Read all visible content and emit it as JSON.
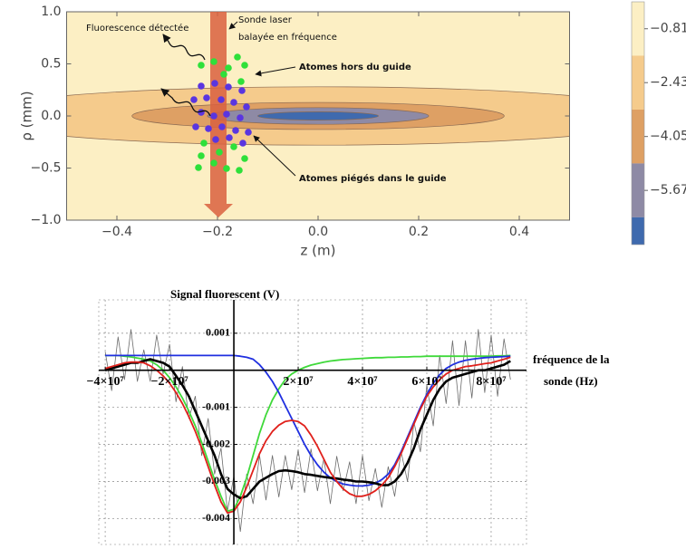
{
  "chart_data": [
    {
      "type": "contour",
      "xlim": [
        -0.5,
        0.5
      ],
      "ylim": [
        -1,
        1
      ],
      "xticks": [
        {
          "value": -0.4,
          "label": "−0.4"
        },
        {
          "value": -0.2,
          "label": "−0.2"
        },
        {
          "value": 0,
          "label": "0.0"
        },
        0.2,
        0.4
      ],
      "yticks": [
        {
          "value": 1,
          "label": "1.0"
        },
        0.5,
        {
          "value": 0,
          "label": "0.0"
        },
        {
          "value": -0.5,
          "label": "−0.5"
        },
        {
          "value": -1,
          "label": "−1.0"
        }
      ],
      "x_label": "z (m)",
      "y_label": "ρ (mm)",
      "levels": [
        -1.62,
        -3.24,
        -4.86,
        -6.48
      ],
      "contours": [
        {
          "level": -1.62,
          "z_half_width": 0.7,
          "rho_half_width": 0.28
        },
        {
          "level": -3.24,
          "z_half_width": 0.37,
          "rho_half_width": 0.13
        },
        {
          "level": -4.86,
          "z_half_width": 0.22,
          "rho_half_width": 0.08
        },
        {
          "level": -6.48,
          "z_half_width": 0.12,
          "rho_half_width": 0.04
        }
      ],
      "colors": [
        "#fcefc4",
        "#f5cb8c",
        "#dea064",
        "#8e8aa5",
        "#3f6aae"
      ],
      "colorbar": {
        "lim": [
          -7.3,
          0
        ],
        "ticks": [
          {
            "value": -0.81,
            "label": "−0.81"
          },
          {
            "value": -2.43,
            "label": "−2.43"
          },
          {
            "value": -4.05,
            "label": "−4.05"
          },
          {
            "value": -5.67,
            "label": "−5.67"
          }
        ]
      },
      "annotations": [
        "Fluorescence détectée",
        "Sonde laser",
        "balayée en fréquence",
        "Atomes hors du guide",
        "Atomes piégés dans le guide"
      ]
    },
    {
      "type": "line",
      "title": "Signal fluorescent (V)",
      "x_label": [
        "fréquence de la",
        "sonde (Hz)"
      ],
      "xlim": [
        -42000000,
        91000000
      ],
      "ylim": [
        -0.0047,
        0.0019
      ],
      "xticks": [
        {
          "value": -40000000,
          "label": "−4×10⁷"
        },
        {
          "value": -20000000,
          "label": "−2×10⁷"
        },
        {
          "value": 20000000,
          "label": "2×10⁷"
        },
        {
          "value": 40000000,
          "label": "4×10⁷"
        },
        {
          "value": 60000000,
          "label": "6×10⁷"
        },
        {
          "value": 80000000,
          "label": "8×10⁷"
        }
      ],
      "yticks": [
        0.001,
        -0.001,
        -0.002,
        -0.003,
        -0.004
      ],
      "grid": true,
      "x": [
        -40000000,
        -38000000,
        -36000000,
        -34000000,
        -32000000,
        -30000000,
        -28000000,
        -26000000,
        -24000000,
        -22000000,
        -20000000,
        -18000000,
        -16000000,
        -14000000,
        -12000000,
        -10000000,
        -8000000,
        -6000000,
        -4000000,
        -2000000,
        0,
        2000000,
        4000000,
        6000000,
        8000000,
        10000000,
        12000000,
        14000000,
        16000000,
        18000000,
        20000000,
        22000000,
        24000000,
        26000000,
        28000000,
        30000000,
        32000000,
        34000000,
        36000000,
        38000000,
        40000000,
        42000000,
        44000000,
        46000000,
        48000000,
        50000000,
        52000000,
        54000000,
        56000000,
        58000000,
        60000000,
        62000000,
        64000000,
        66000000,
        68000000,
        70000000,
        72000000,
        74000000,
        76000000,
        78000000,
        80000000,
        82000000,
        84000000,
        86000000
      ],
      "series": [
        {
          "color": "#6b6b6b",
          "values": [
            0.0005,
            -0.00055,
            0.0009,
            -0.00025,
            0.0011,
            -0.0003,
            0.00055,
            -0.0003,
            0.00095,
            -0.0001,
            0.0007,
            -0.00085,
            0.0001,
            -0.0013,
            -0.0007,
            -0.0023,
            -0.0013,
            -0.0028,
            -0.0021,
            -0.0038,
            -0.00285,
            -0.00435,
            -0.0028,
            -0.0036,
            -0.0023,
            -0.0035,
            -0.0023,
            -0.00342,
            -0.0023,
            -0.00322,
            -0.00215,
            -0.0033,
            -0.00212,
            -0.00325,
            -0.00238,
            -0.0036,
            -0.00232,
            -0.00325,
            -0.00247,
            -0.0036,
            -0.0023,
            -0.00352,
            -0.00265,
            -0.0037,
            -0.0026,
            -0.0034,
            -0.0022,
            -0.003,
            -0.0014,
            -0.0022,
            -0.0004,
            -0.0015,
            0.0004,
            -0.0009,
            0.0008,
            -0.00095,
            0.0008,
            -0.00075,
            0.0011,
            -0.0006,
            0.00095,
            -0.0007,
            0.00085,
            -0.00025
          ]
        },
        {
          "color": "#3fd93a",
          "values": [
            0.0004,
            0.0004,
            0.0004,
            0.00038,
            0.00036,
            0.00033,
            0.0003,
            0.00025,
            0.00015,
            0,
            -0.0002,
            -0.00045,
            -0.00075,
            -0.0011,
            -0.0015,
            -0.00195,
            -0.00245,
            -0.00295,
            -0.0034,
            -0.0038,
            -0.00375,
            -0.0034,
            -0.0029,
            -0.0023,
            -0.0017,
            -0.0012,
            -0.0008,
            -0.0005,
            -0.00025,
            -0.0001,
            0,
            8e-05,
            0.00014,
            0.00018,
            0.00022,
            0.00025,
            0.00027,
            0.00029,
            0.0003,
            0.00031,
            0.00032,
            0.00033,
            0.00034,
            0.00034,
            0.00035,
            0.00035,
            0.00036,
            0.00036,
            0.00037,
            0.00037,
            0.00038,
            0.00038,
            0.00038,
            0.00038,
            0.00038,
            0.00038,
            0.00038,
            0.00038,
            0.00038,
            0.00038,
            0.00038,
            0.00039,
            0.00039,
            0.0004
          ]
        },
        {
          "color": "#1f2fe0",
          "values": [
            0.0004,
            0.0004,
            0.0004,
            0.0004,
            0.0004,
            0.0004,
            0.0004,
            0.0004,
            0.0004,
            0.0004,
            0.0004,
            0.0004,
            0.0004,
            0.0004,
            0.0004,
            0.0004,
            0.0004,
            0.0004,
            0.0004,
            0.0004,
            0.0004,
            0.00038,
            0.00035,
            0.0003,
            0.00015,
            -5e-05,
            -0.0003,
            -0.0006,
            -0.00095,
            -0.0013,
            -0.00165,
            -0.002,
            -0.0023,
            -0.00255,
            -0.00275,
            -0.0029,
            -0.003,
            -0.00307,
            -0.0031,
            -0.00312,
            -0.00312,
            -0.0031,
            -0.00305,
            -0.00295,
            -0.0028,
            -0.00255,
            -0.0022,
            -0.0018,
            -0.0014,
            -0.001,
            -0.00065,
            -0.00035,
            -0.00012,
            5e-05,
            0.00015,
            0.00022,
            0.00027,
            0.0003,
            0.00032,
            0.00034,
            0.00035,
            0.00036,
            0.00037,
            0.00038
          ]
        },
        {
          "color": "#000000",
          "values": [
            0,
            5e-05,
            0.0001,
            0.00015,
            0.0002,
            0.0002,
            0.00025,
            0.0003,
            0.00025,
            0.0002,
            0.0001,
            -0.00015,
            -0.0004,
            -0.0007,
            -0.0011,
            -0.0015,
            -0.0019,
            -0.0023,
            -0.0028,
            -0.0032,
            -0.00335,
            -0.00345,
            -0.0034,
            -0.0032,
            -0.003,
            -0.0029,
            -0.0028,
            -0.00272,
            -0.0027,
            -0.00272,
            -0.00275,
            -0.0028,
            -0.00282,
            -0.00285,
            -0.00288,
            -0.0029,
            -0.00292,
            -0.00295,
            -0.00297,
            -0.003,
            -0.003,
            -0.00302,
            -0.00305,
            -0.0031,
            -0.0031,
            -0.003,
            -0.0028,
            -0.0025,
            -0.0021,
            -0.0016,
            -0.0012,
            -0.0008,
            -0.0005,
            -0.0003,
            -0.0002,
            -0.00015,
            -0.0001,
            -5e-05,
            0,
            0,
            5e-05,
            0.0001,
            0.00015,
            0.00025
          ]
        },
        {
          "color": "#e0201b",
          "values": [
            5e-05,
            0.0001,
            0.00015,
            0.0002,
            0.00022,
            0.00022,
            0.0002,
            0.00012,
            0,
            -0.00015,
            -0.00035,
            -0.0006,
            -0.0009,
            -0.00125,
            -0.00165,
            -0.0021,
            -0.0026,
            -0.0031,
            -0.00355,
            -0.00385,
            -0.0038,
            -0.00355,
            -0.00315,
            -0.0027,
            -0.00225,
            -0.0019,
            -0.00165,
            -0.00148,
            -0.00138,
            -0.00135,
            -0.00138,
            -0.0015,
            -0.00175,
            -0.00205,
            -0.0024,
            -0.00275,
            -0.003,
            -0.0032,
            -0.00333,
            -0.0034,
            -0.0034,
            -0.00335,
            -0.00325,
            -0.0031,
            -0.0029,
            -0.0026,
            -0.00225,
            -0.00185,
            -0.00145,
            -0.00105,
            -0.0007,
            -0.00045,
            -0.00025,
            -0.0001,
            0,
            5e-05,
            0.0001,
            0.00012,
            0.00015,
            0.00018,
            0.0002,
            0.00025,
            0.0003,
            0.00035
          ]
        }
      ]
    }
  ]
}
